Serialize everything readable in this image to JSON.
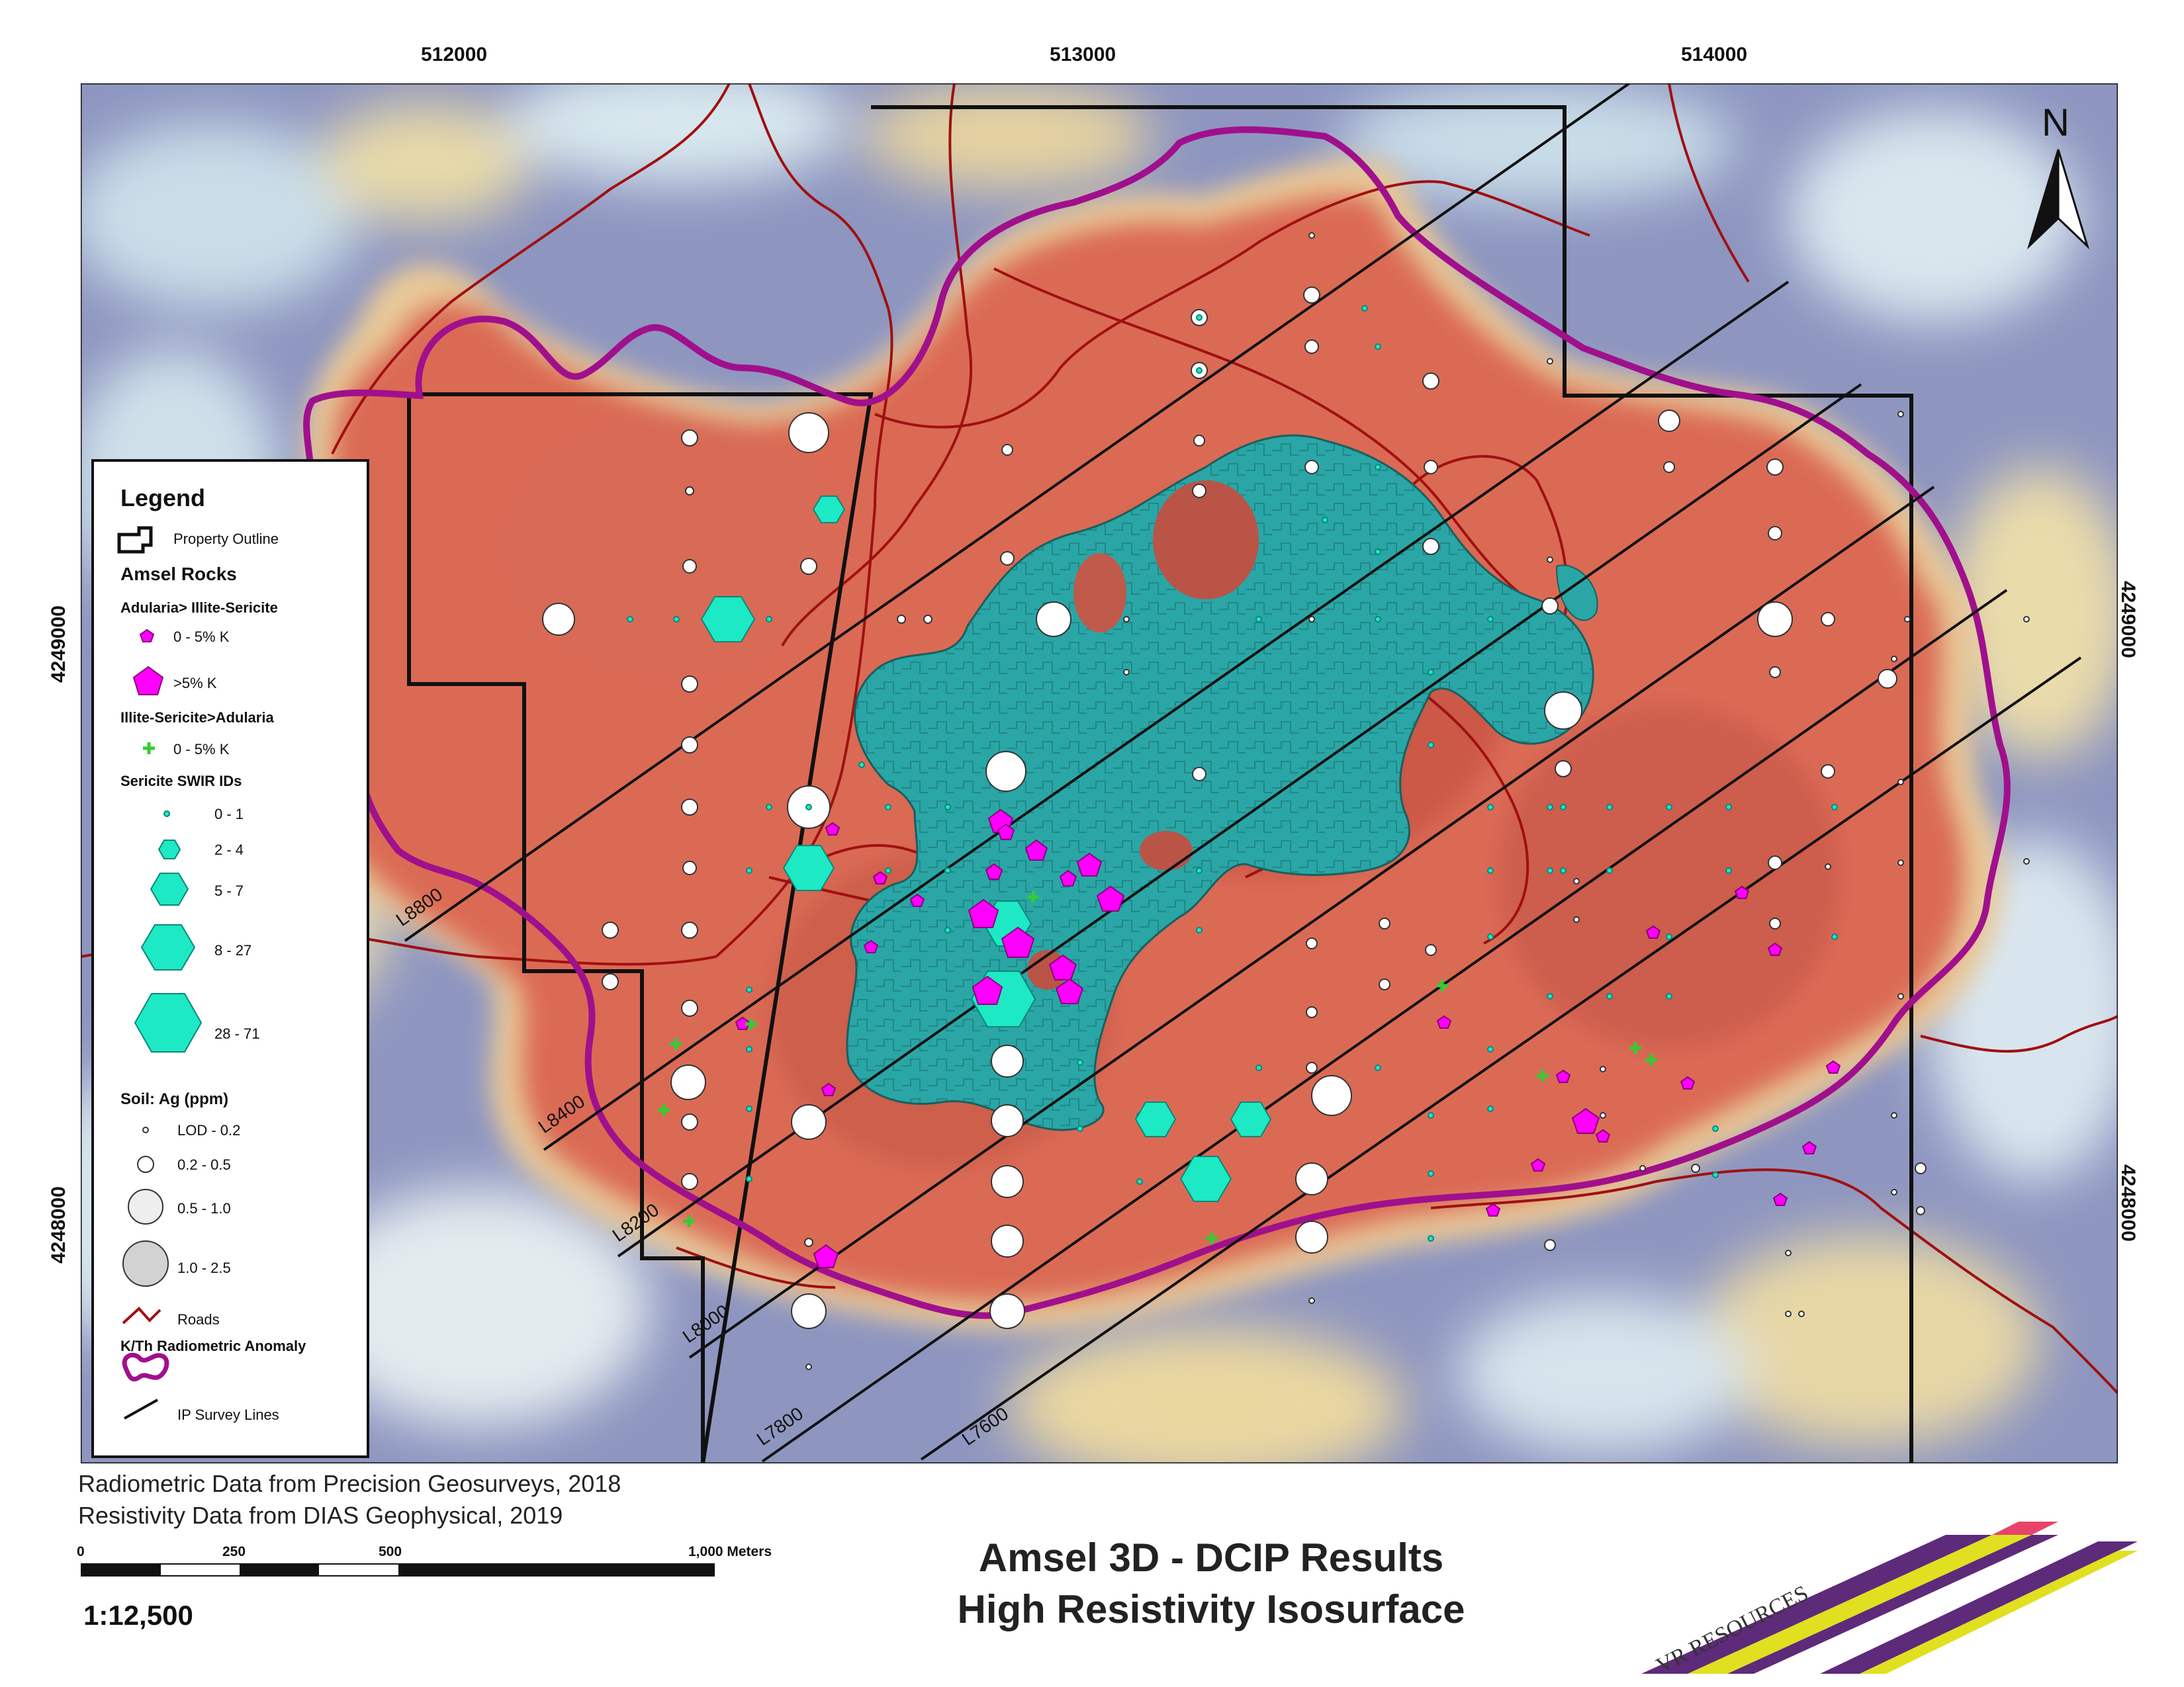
{
  "map": {
    "easting_ticks": [
      "512000",
      "513000",
      "514000"
    ],
    "northing_ticks": [
      "4249000",
      "4248000"
    ],
    "north_label": "N",
    "ip_lines": [
      "L8800",
      "L8400",
      "L8200",
      "L8000",
      "L7800",
      "L7600"
    ]
  },
  "legend": {
    "title": "Legend",
    "property_outline": "Property Outline",
    "amsel_rocks": "Amsel Rocks",
    "adularia_header": "Adularia> Illite-Sericite",
    "adularia_0_5": "0 - 5% K",
    "adularia_gt5": ">5% K",
    "illite_header": "Illite-Sericite>Adularia",
    "illite_0_5": "0 - 5% K",
    "sericite_header": "Sericite SWIR IDs",
    "sericite_classes": [
      "0 - 1",
      "2 - 4",
      "5 - 7",
      "8 - 27",
      "28 - 71"
    ],
    "soil_header": "Soil: Ag (ppm)",
    "soil_classes": [
      "LOD - 0.2",
      "0.2 - 0.5",
      "0.5 - 1.0",
      "1.0 - 2.5"
    ],
    "roads": "Roads",
    "kth_header": "K/Th Radiometric Anomaly",
    "ip_lines": "IP Survey Lines"
  },
  "credits": {
    "radiometric": "Radiometric Data from Precision Geosurveys, 2018",
    "resistivity": "Resistivity Data from DIAS Geophysical, 2019"
  },
  "scale": {
    "labels": [
      "0",
      "250",
      "500",
      "1,000 Meters"
    ],
    "ratio": "1:12,500"
  },
  "title": {
    "line1": "Amsel 3D - DCIP Results",
    "line2": "High Resistivity Isosurface"
  },
  "logo": {
    "text": "VR RESOURCES"
  },
  "colors": {
    "kth_anomaly": "#a0108c",
    "roads": "#a01010",
    "isosurface": "#2aa6a6",
    "adularia": "#ff00ff",
    "illite": "#33cc33",
    "sericite": "#1de9c5",
    "resistivity_high": "#d9624f"
  }
}
